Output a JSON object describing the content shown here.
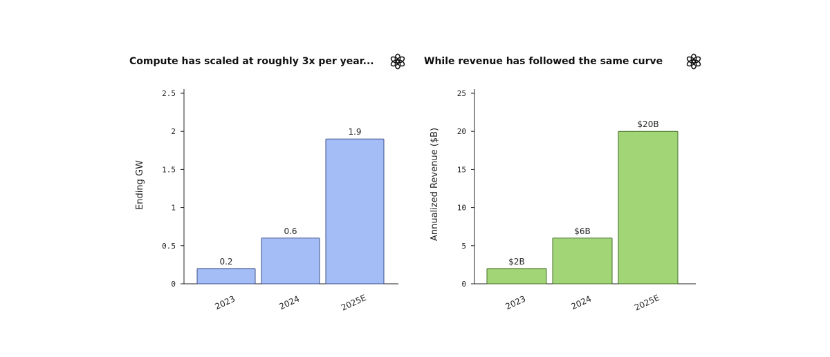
{
  "chart_data": [
    {
      "type": "bar",
      "title": "Compute has scaled at roughly 3x per year...",
      "ylabel": "Ending GW",
      "xlabel": "",
      "categories": [
        "2023",
        "2024",
        "2025E"
      ],
      "values": [
        0.2,
        0.6,
        1.9
      ],
      "data_labels": [
        "0.2",
        "0.6",
        "1.9"
      ],
      "yticks": [
        0,
        0.5,
        1,
        1.5,
        2,
        2.5
      ],
      "ytick_labels": [
        "0",
        "0.5",
        "1",
        "1.5",
        "2",
        "2.5"
      ],
      "ylim": [
        0,
        2.5
      ],
      "bar_color": "#a4bdf7",
      "bar_edge": "#3d4f86",
      "grid": false,
      "icon": "openai-logo-icon"
    },
    {
      "type": "bar",
      "title": "While revenue has followed the same curve",
      "ylabel": "Annualized Revenue ($B)",
      "xlabel": "",
      "categories": [
        "2023",
        "2024",
        "2025E"
      ],
      "values": [
        2,
        6,
        20
      ],
      "data_labels": [
        "$2B",
        "$6B",
        "$20B"
      ],
      "yticks": [
        0,
        5,
        10,
        15,
        20,
        25
      ],
      "ytick_labels": [
        "0",
        "5",
        "10",
        "15",
        "20",
        "25"
      ],
      "ylim": [
        0,
        25
      ],
      "bar_color": "#a2d576",
      "bar_edge": "#456d2c",
      "grid": false,
      "icon": "openai-logo-icon"
    }
  ]
}
